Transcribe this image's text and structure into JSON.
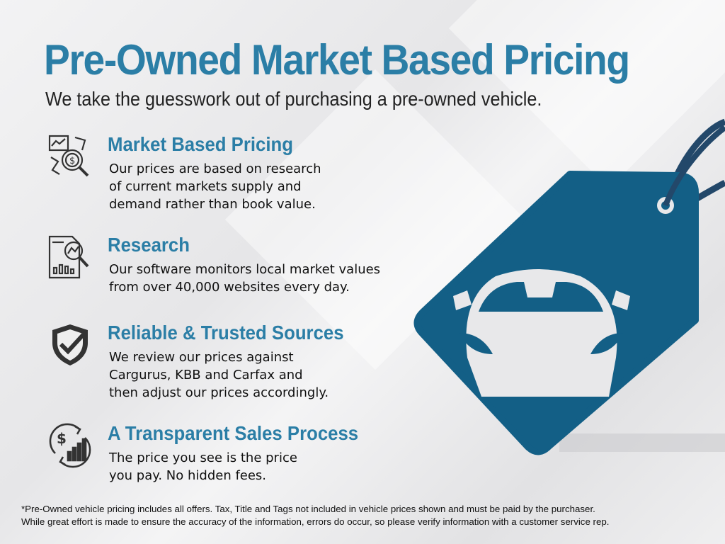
{
  "title": "Pre-Owned Market Based Pricing",
  "subtitle": "We take the guesswork out of purchasing a pre-owned vehicle.",
  "colors": {
    "accent": "#2b7ea6",
    "tag": "#135f86",
    "tag_string": "#23486a"
  },
  "sections": [
    {
      "icon": "market-analysis-icon",
      "heading": "Market Based Pricing",
      "body": "Our prices are based on research\nof current markets supply and\ndemand rather than book value."
    },
    {
      "icon": "research-report-icon",
      "heading": "Research",
      "body": "Our software monitors local market values\nfrom over 40,000 websites every day."
    },
    {
      "icon": "shield-check-icon",
      "heading": "Reliable & Trusted Sources",
      "body": "We review our prices against\nCargurus, KBB and Carfax and\nthen adjust our prices accordingly."
    },
    {
      "icon": "dollar-growth-icon",
      "heading": "A Transparent Sales Process",
      "body": "The price you see is the price\nyou pay. No hidden fees."
    }
  ],
  "illustration": "car-price-tag-icon",
  "disclaimer": "*Pre-Owned vehicle pricing includes all offers. Tax, Title and Tags not included in vehicle prices shown and must be paid by the purchaser.\nWhile great effort is made to ensure the accuracy of the information, errors do occur, so please verify information with a customer service rep."
}
